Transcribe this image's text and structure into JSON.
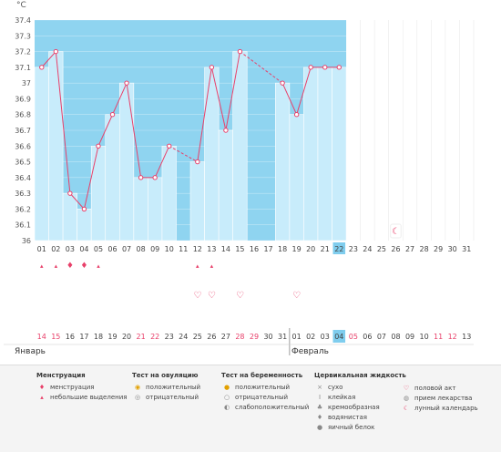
{
  "chart_data": {
    "type": "line",
    "unit": "°C",
    "ylim": [
      36.0,
      37.4
    ],
    "yticks": [
      "36",
      "36.1",
      "36.2",
      "36.3",
      "36.4",
      "36.5",
      "36.6",
      "36.7",
      "36.8",
      "36.9",
      "37",
      "37.1",
      "37.2",
      "37.3",
      "37.4"
    ],
    "cycle_days": [
      "01",
      "02",
      "03",
      "04",
      "05",
      "06",
      "07",
      "08",
      "09",
      "10",
      "11",
      "12",
      "13",
      "14",
      "15",
      "16",
      "17",
      "18",
      "19",
      "20",
      "21",
      "22",
      "23",
      "24",
      "25",
      "26",
      "27",
      "28",
      "29",
      "30",
      "31"
    ],
    "current_day": "22",
    "temperatures": [
      37.1,
      37.2,
      36.3,
      36.2,
      36.6,
      36.8,
      37.0,
      36.4,
      36.4,
      36.6,
      null,
      36.5,
      37.1,
      36.7,
      37.2,
      null,
      null,
      37.0,
      36.8,
      37.1,
      37.1,
      37.1,
      null,
      null,
      null,
      null,
      null,
      null,
      null,
      null,
      null
    ],
    "menstruation_heavy_days": [
      "03",
      "04"
    ],
    "menstruation_light_days": [
      "01",
      "02",
      "05",
      "12",
      "13"
    ],
    "intercourse_days": [
      "12",
      "13",
      "15",
      "19"
    ],
    "moon_days": [
      "26"
    ],
    "calendar_dates": [
      "14",
      "15",
      "16",
      "17",
      "18",
      "19",
      "20",
      "21",
      "22",
      "23",
      "24",
      "25",
      "26",
      "27",
      "28",
      "29",
      "30",
      "31",
      "01",
      "02",
      "03",
      "04",
      "05",
      "06",
      "07",
      "08",
      "09",
      "10",
      "11",
      "12",
      "13"
    ],
    "highlighted_dates": [
      "14",
      "15",
      "21",
      "22",
      "28",
      "29",
      "05",
      "11",
      "12"
    ],
    "today_date": "04",
    "month_left": "Январь",
    "month_right": "Февраль",
    "colors": {
      "past_background": "#8fd4f0",
      "bar_fill": "#c8ecfb",
      "line": "#e8406a",
      "weekend_text": "#e8406a",
      "today_box": "#7fcdee"
    }
  },
  "legend": {
    "menstruation": {
      "title": "Менструация",
      "items": [
        "менструация",
        "небольшие выделения"
      ]
    },
    "ovulation": {
      "title": "Тест на овуляцию",
      "items": [
        "положительный",
        "отрицательный"
      ]
    },
    "pregnancy": {
      "title": "Тест на беременность",
      "items": [
        "положительный",
        "отрицательный",
        "слабоположительный"
      ]
    },
    "cervical": {
      "title": "Цервикальная жидкость",
      "items": [
        "сухо",
        "клейкая",
        "кремообразная",
        "водянистая",
        "яичный белок"
      ]
    },
    "other": {
      "items": [
        "половой акт",
        "прием лекарства",
        "лунный календарь"
      ]
    }
  }
}
